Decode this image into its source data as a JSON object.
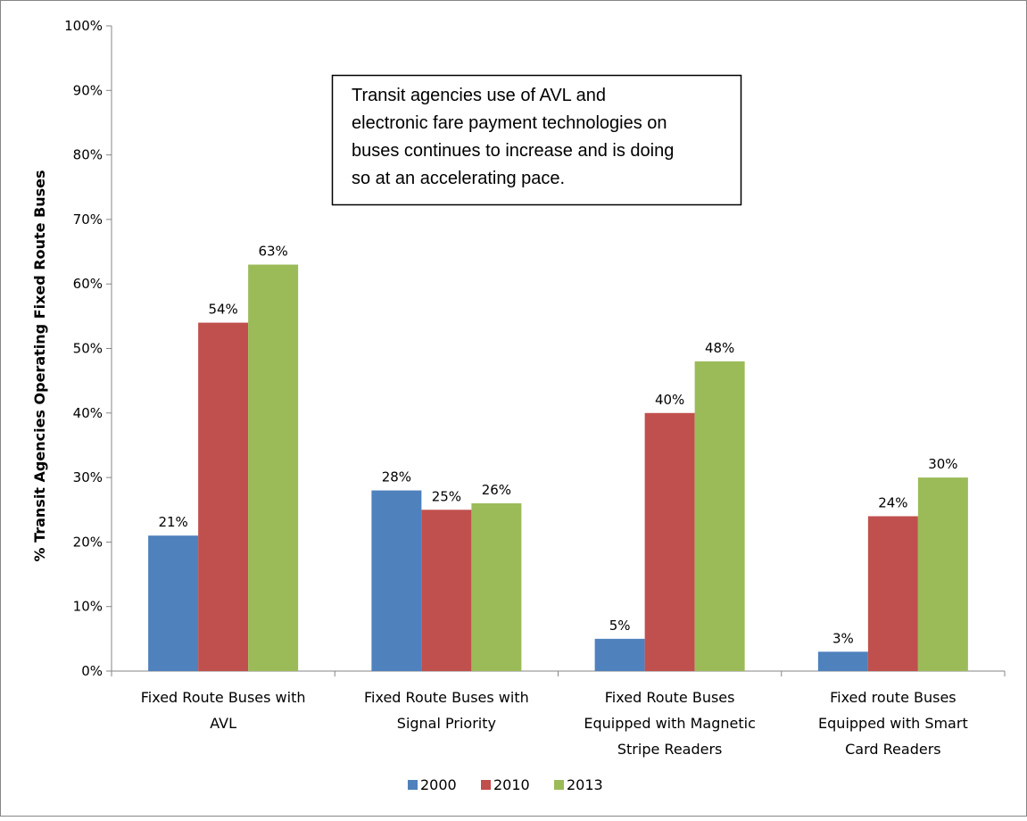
{
  "chart_data": {
    "type": "bar",
    "categories": [
      [
        "Fixed Route Buses with",
        "AVL"
      ],
      [
        "Fixed Route Buses with",
        "Signal Priority"
      ],
      [
        "Fixed Route Buses",
        "Equipped with Magnetic",
        "Stripe Readers"
      ],
      [
        "Fixed route Buses",
        "Equipped with Smart",
        "Card Readers"
      ]
    ],
    "series": [
      {
        "name": "2000",
        "color": "#4F81BD",
        "values": [
          21,
          28,
          5,
          3
        ]
      },
      {
        "name": "2010",
        "color": "#C0504D",
        "values": [
          54,
          25,
          40,
          24
        ]
      },
      {
        "name": "2013",
        "color": "#9BBB59",
        "values": [
          63,
          26,
          48,
          30
        ]
      }
    ],
    "data_labels": [
      [
        "21%",
        "28%",
        "5%",
        "3%"
      ],
      [
        "54%",
        "25%",
        "40%",
        "24%"
      ],
      [
        "63%",
        "26%",
        "48%",
        "30%"
      ]
    ],
    "title": "",
    "xlabel": "",
    "ylabel": "% Transit Agencies Operating Fixed Route Buses",
    "ylim": [
      0,
      100
    ],
    "yticks": [
      0,
      10,
      20,
      30,
      40,
      50,
      60,
      70,
      80,
      90,
      100
    ],
    "ytick_suffix": "%",
    "grid": false,
    "legend_position": "bottom",
    "annotation": [
      "Transit agencies use of AVL and",
      "electronic fare payment technologies on",
      "buses continues to increase and is doing",
      "so at an accelerating pace."
    ]
  }
}
